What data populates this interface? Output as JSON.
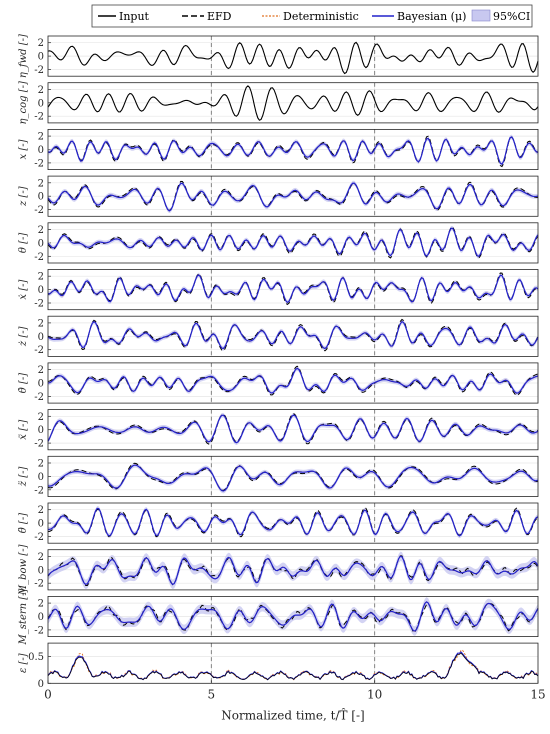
{
  "chart_data": {
    "type": "line",
    "xlabel": "Normalized time, t/T̂ [-]",
    "xlim": [
      0,
      15
    ],
    "xticks": [
      "0",
      "5",
      "10",
      "15"
    ],
    "xtick_values": [
      0,
      5,
      10,
      15
    ],
    "legend": {
      "placement": "top-center",
      "entries": [
        {
          "label": "Input",
          "color": "#000000",
          "style": "solid"
        },
        {
          "label": "EFD",
          "color": "#000000",
          "style": "dashed"
        },
        {
          "label": "Deterministic",
          "color": "#e07020",
          "style": "dotted"
        },
        {
          "label": "Bayesian (μ)",
          "color": "#2222cc",
          "style": "solid"
        },
        {
          "label": "95%CI",
          "color": "#c8c8f0",
          "style": "patch"
        }
      ]
    },
    "grid": true,
    "colors": {
      "input": "#000000",
      "efd": "#000000",
      "deterministic": "#e07020",
      "bayesian": "#2222cc",
      "ci": "#c8c8f0",
      "vline": "#777777"
    },
    "panels": [
      {
        "ylabel": "η_fwd [-]",
        "ylim": [
          -3,
          3
        ],
        "yticks": [
          "2",
          "0",
          "-2"
        ],
        "ytick_values": [
          2,
          0,
          -2
        ],
        "kind": "input",
        "seed": 1
      },
      {
        "ylabel": "η_cog [-]",
        "ylim": [
          -3,
          3
        ],
        "yticks": [
          "2",
          "0",
          "-2"
        ],
        "ytick_values": [
          2,
          0,
          -2
        ],
        "kind": "input",
        "seed": 2
      },
      {
        "ylabel": "x [-]",
        "ylim": [
          -3,
          3
        ],
        "yticks": [
          "2",
          "0",
          "-2"
        ],
        "ytick_values": [
          2,
          0,
          -2
        ],
        "kind": "output",
        "seed": 3
      },
      {
        "ylabel": "z [-]",
        "ylim": [
          -3,
          3
        ],
        "yticks": [
          "2",
          "0",
          "-2"
        ],
        "ytick_values": [
          2,
          0,
          -2
        ],
        "kind": "output",
        "seed": 4
      },
      {
        "ylabel": "θ [-]",
        "ylim": [
          -3,
          3
        ],
        "yticks": [
          "2",
          "0",
          "-2"
        ],
        "ytick_values": [
          2,
          0,
          -2
        ],
        "kind": "output",
        "seed": 5
      },
      {
        "ylabel": "ẋ [-]",
        "ylim": [
          -3,
          3
        ],
        "yticks": [
          "2",
          "0",
          "-2"
        ],
        "ytick_values": [
          2,
          0,
          -2
        ],
        "kind": "output",
        "seed": 6
      },
      {
        "ylabel": "ż [-]",
        "ylim": [
          -3,
          3
        ],
        "yticks": [
          "2",
          "0",
          "-2"
        ],
        "ytick_values": [
          2,
          0,
          -2
        ],
        "kind": "output",
        "seed": 7
      },
      {
        "ylabel": "θ̇ [-]",
        "ylim": [
          -3,
          3
        ],
        "yticks": [
          "2",
          "0",
          "-2"
        ],
        "ytick_values": [
          2,
          0,
          -2
        ],
        "kind": "output",
        "seed": 8
      },
      {
        "ylabel": "ẍ [-]",
        "ylim": [
          -3,
          3
        ],
        "yticks": [
          "2",
          "0",
          "-2"
        ],
        "ytick_values": [
          2,
          0,
          -2
        ],
        "kind": "output",
        "seed": 9
      },
      {
        "ylabel": "z̈ [-]",
        "ylim": [
          -3,
          3
        ],
        "yticks": [
          "2",
          "0",
          "-2"
        ],
        "ytick_values": [
          2,
          0,
          -2
        ],
        "kind": "output",
        "seed": 10
      },
      {
        "ylabel": "θ̈ [-]",
        "ylim": [
          -3,
          3
        ],
        "yticks": [
          "2",
          "0",
          "-2"
        ],
        "ytick_values": [
          2,
          0,
          -2
        ],
        "kind": "output",
        "seed": 11
      },
      {
        "ylabel": "M_bow [-]",
        "ylim": [
          -3,
          3
        ],
        "yticks": [
          "2",
          "0",
          "-2"
        ],
        "ytick_values": [
          2,
          0,
          -2
        ],
        "kind": "output-noisy",
        "seed": 12
      },
      {
        "ylabel": "M_stern [-]",
        "ylim": [
          -3,
          3
        ],
        "yticks": [
          "2",
          "0",
          "-2"
        ],
        "ytick_values": [
          2,
          0,
          -2
        ],
        "kind": "output-noisy",
        "seed": 13
      },
      {
        "ylabel": "ε [-]",
        "ylim": [
          0,
          0.75
        ],
        "yticks": [
          "0.5",
          "0"
        ],
        "ytick_values": [
          0.5,
          0
        ],
        "kind": "error",
        "seed": 14
      }
    ]
  }
}
